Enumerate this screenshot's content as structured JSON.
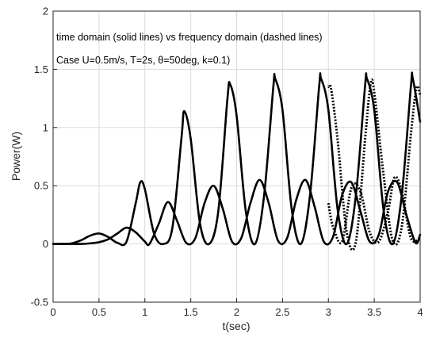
{
  "chart_data": {
    "type": "line",
    "xlabel": "t(sec)",
    "ylabel": "Power(W)",
    "xlim": [
      0,
      4
    ],
    "ylim": [
      -0.5,
      2
    ],
    "x_ticks": [
      "0",
      "0.5",
      "1",
      "1.5",
      "2",
      "2.5",
      "3",
      "3.5",
      "4"
    ],
    "y_ticks": [
      "-0.5",
      "0",
      "0.5",
      "1",
      "1.5",
      "2"
    ],
    "grid": true,
    "annotations": [
      {
        "text": "time domain (solid lines) vs frequency domain (dashed lines)"
      },
      {
        "text": "Case U=0.5m/s, T=2s, θ=50deg, k=0.1)"
      }
    ],
    "series": [
      {
        "style": "solid",
        "color": "#000000",
        "x": [
          0,
          0.1,
          0.2,
          0.3,
          0.4,
          0.5,
          0.6,
          0.7,
          0.8,
          0.9,
          0.95,
          1.0,
          1.1,
          1.2,
          1.3,
          1.4,
          1.43,
          1.5,
          1.6,
          1.7,
          1.8,
          1.9,
          1.93,
          2.0,
          2.1,
          2.2,
          2.3,
          2.4,
          2.42,
          2.5,
          2.6,
          2.7,
          2.8,
          2.9,
          2.92,
          3.0,
          3.1,
          3.2,
          3.3,
          3.4,
          3.42,
          3.5,
          3.6,
          3.7,
          3.8,
          3.9,
          3.92,
          4.0
        ],
        "y": [
          0.0,
          0.0,
          0.005,
          0.03,
          0.07,
          0.09,
          0.06,
          0.01,
          0.02,
          0.35,
          0.53,
          0.47,
          0.09,
          0.0,
          0.14,
          0.92,
          1.14,
          0.9,
          0.18,
          0.0,
          0.28,
          1.25,
          1.37,
          1.1,
          0.28,
          0.0,
          0.42,
          1.35,
          1.42,
          1.15,
          0.3,
          0.0,
          0.42,
          1.36,
          1.42,
          1.15,
          0.3,
          0.0,
          0.42,
          1.36,
          1.42,
          1.15,
          0.3,
          0.0,
          0.42,
          1.36,
          1.42,
          1.05
        ]
      },
      {
        "style": "solid",
        "color": "#000000",
        "x": [
          0,
          0.1,
          0.2,
          0.3,
          0.4,
          0.5,
          0.6,
          0.7,
          0.8,
          0.9,
          1.0,
          1.05,
          1.15,
          1.25,
          1.35,
          1.45,
          1.55,
          1.65,
          1.75,
          1.85,
          1.95,
          2.05,
          2.15,
          2.25,
          2.35,
          2.45,
          2.55,
          2.65,
          2.75,
          2.85,
          2.95,
          3.05,
          3.15,
          3.25,
          3.35,
          3.45,
          3.55,
          3.65,
          3.75,
          3.85,
          3.95,
          4.0
        ],
        "y": [
          0.0,
          0.0,
          0.0,
          0.0,
          0.005,
          0.015,
          0.04,
          0.09,
          0.14,
          0.1,
          0.02,
          0.0,
          0.17,
          0.36,
          0.2,
          0.01,
          0.05,
          0.35,
          0.5,
          0.3,
          0.02,
          0.05,
          0.35,
          0.55,
          0.35,
          0.03,
          0.05,
          0.38,
          0.55,
          0.32,
          0.02,
          0.06,
          0.42,
          0.53,
          0.28,
          0.02,
          0.08,
          0.45,
          0.53,
          0.25,
          0.01,
          0.08
        ]
      },
      {
        "style": "dashed",
        "color": "#000000",
        "x": [
          3.0,
          3.03,
          3.1,
          3.2,
          3.3,
          3.4,
          3.46,
          3.5,
          3.6,
          3.7,
          3.8,
          3.9,
          3.96,
          4.0
        ],
        "y": [
          1.35,
          1.33,
          0.9,
          0.1,
          0.02,
          0.9,
          1.37,
          1.3,
          0.6,
          0.03,
          0.15,
          0.95,
          1.34,
          1.28
        ]
      },
      {
        "style": "dashed",
        "color": "#000000",
        "x": [
          3.0,
          3.05,
          3.15,
          3.25,
          3.35,
          3.45,
          3.55,
          3.65,
          3.72,
          3.8,
          3.9,
          4.0
        ],
        "y": [
          0.35,
          0.15,
          0.02,
          0.48,
          0.45,
          0.1,
          0.02,
          0.28,
          0.57,
          0.45,
          0.05,
          0.05
        ]
      }
    ]
  }
}
